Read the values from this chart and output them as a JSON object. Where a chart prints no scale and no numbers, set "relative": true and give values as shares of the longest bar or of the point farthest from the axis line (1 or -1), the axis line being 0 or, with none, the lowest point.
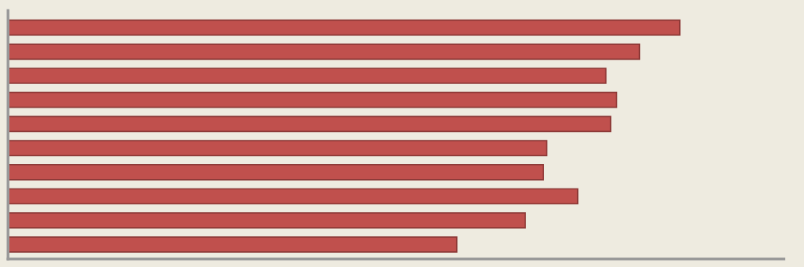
{
  "chart_data": {
    "type": "bar",
    "orientation": "horizontal",
    "relative": true,
    "categories": [
      null,
      null,
      null,
      null,
      null,
      null,
      null,
      null,
      null,
      null
    ],
    "values": [
      1,
      0.94,
      0.89,
      0.906,
      0.897,
      0.802,
      0.797,
      0.848,
      0.77,
      0.668
    ],
    "color": "#c0504d",
    "grid": false,
    "legend": false
  }
}
